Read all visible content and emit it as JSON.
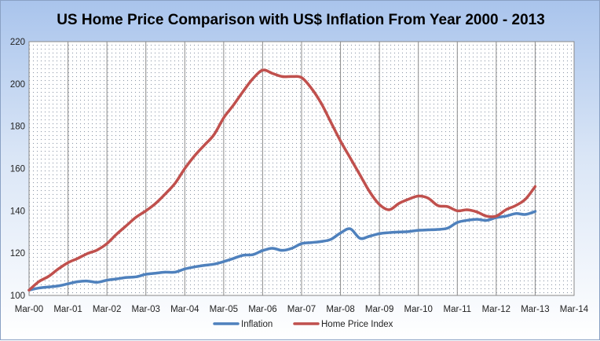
{
  "chart_data": {
    "type": "line",
    "title": "US Home Price Comparison  with US$ Inflation From Year 2000 - 2013",
    "xlabel": "",
    "ylabel": "",
    "x_tick_labels": [
      "Mar-00",
      "Mar-01",
      "Mar-02",
      "Mar-03",
      "Mar-04",
      "Mar-05",
      "Mar-06",
      "Mar-07",
      "Mar-08",
      "Mar-09",
      "Mar-10",
      "Mar-11",
      "Mar-12",
      "Mar-13",
      "Mar-14"
    ],
    "xlim": [
      0,
      14
    ],
    "ylim": [
      100,
      220
    ],
    "y_ticks": [
      100,
      120,
      140,
      160,
      180,
      200,
      220
    ],
    "grid": "vertical",
    "legend": "bottom",
    "series": [
      {
        "name": "Inflation",
        "color": "#4f81bd",
        "x": [
          0,
          0.25,
          0.5,
          0.75,
          1,
          1.25,
          1.5,
          1.75,
          2,
          2.25,
          2.5,
          2.75,
          3,
          3.25,
          3.5,
          3.75,
          4,
          4.25,
          4.5,
          4.75,
          5,
          5.25,
          5.5,
          5.75,
          6,
          6.25,
          6.5,
          6.75,
          7,
          7.25,
          7.5,
          7.75,
          8,
          8.25,
          8.5,
          8.75,
          9,
          9.25,
          9.5,
          9.75,
          10,
          10.25,
          10.5,
          10.75,
          11,
          11.25,
          11.5,
          11.75,
          12,
          12.25,
          12.5,
          12.75,
          13
        ],
        "values": [
          102.5,
          103.5,
          104,
          104.5,
          105.5,
          106.5,
          106.8,
          106.2,
          107.2,
          107.8,
          108.5,
          108.8,
          110,
          110.5,
          111,
          111,
          112.5,
          113.5,
          114.2,
          114.8,
          116,
          117.5,
          119,
          119.3,
          121.2,
          122.3,
          121.3,
          122.3,
          124.5,
          125,
          125.5,
          126.5,
          129.5,
          131.5,
          127,
          128,
          129.2,
          129.7,
          130,
          130.2,
          130.8,
          131,
          131.2,
          131.8,
          134.5,
          135.5,
          136,
          135.5,
          136.8,
          137.5,
          138.7,
          138.3,
          139.7
        ]
      },
      {
        "name": "Home Price Index",
        "color": "#c0504d",
        "x": [
          0,
          0.25,
          0.5,
          0.75,
          1,
          1.25,
          1.5,
          1.75,
          2,
          2.25,
          2.5,
          2.75,
          3,
          3.25,
          3.5,
          3.75,
          4,
          4.25,
          4.5,
          4.75,
          5,
          5.25,
          5.5,
          5.75,
          6,
          6.25,
          6.5,
          6.75,
          7,
          7.25,
          7.5,
          7.75,
          8,
          8.25,
          8.5,
          8.75,
          9,
          9.25,
          9.5,
          9.75,
          10,
          10.25,
          10.5,
          10.75,
          11,
          11.25,
          11.5,
          11.75,
          12,
          12.25,
          12.5,
          12.75,
          13
        ],
        "values": [
          102.5,
          106.5,
          109,
          112.5,
          115.5,
          117.5,
          119.8,
          121.5,
          124.5,
          129,
          133,
          137,
          140,
          143.5,
          148,
          153,
          160,
          166,
          171,
          176,
          184,
          190,
          196.5,
          202.5,
          206.5,
          205,
          203.5,
          203.5,
          203,
          198,
          191,
          182,
          173,
          165,
          157,
          149,
          143,
          140.5,
          143.5,
          145.5,
          147,
          146,
          142.5,
          142,
          140,
          140.5,
          139.5,
          137.5,
          137.5,
          140.5,
          142.5,
          145.5,
          151.5
        ]
      }
    ]
  }
}
